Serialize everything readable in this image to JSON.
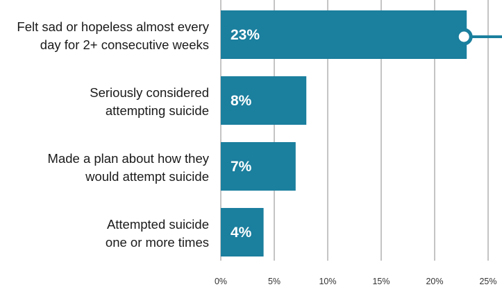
{
  "chart_data": {
    "type": "bar",
    "orientation": "horizontal",
    "categories": [
      [
        "Felt sad or hopeless almost every",
        "day for 2+ consecutive weeks"
      ],
      [
        "Seriously considered",
        "attempting suicide"
      ],
      [
        "Made a plan about how they",
        "would attempt suicide"
      ],
      [
        "Attempted suicide",
        "one or more times"
      ]
    ],
    "values": [
      23,
      8,
      7,
      4
    ],
    "data_labels": [
      "23%",
      "8%",
      "7%",
      "4%"
    ],
    "x_ticks": [
      0,
      5,
      10,
      15,
      20,
      25
    ],
    "x_tick_labels": [
      "0%",
      "5%",
      "10%",
      "15%",
      "20%",
      "25%"
    ],
    "xlim": [
      0,
      25
    ],
    "grid": true,
    "bar_color": "#1b7f9e",
    "grid_color": "#8a8a8a",
    "marker": "ring marker at end of first bar with connector line",
    "title": "",
    "xlabel": "",
    "ylabel": ""
  }
}
